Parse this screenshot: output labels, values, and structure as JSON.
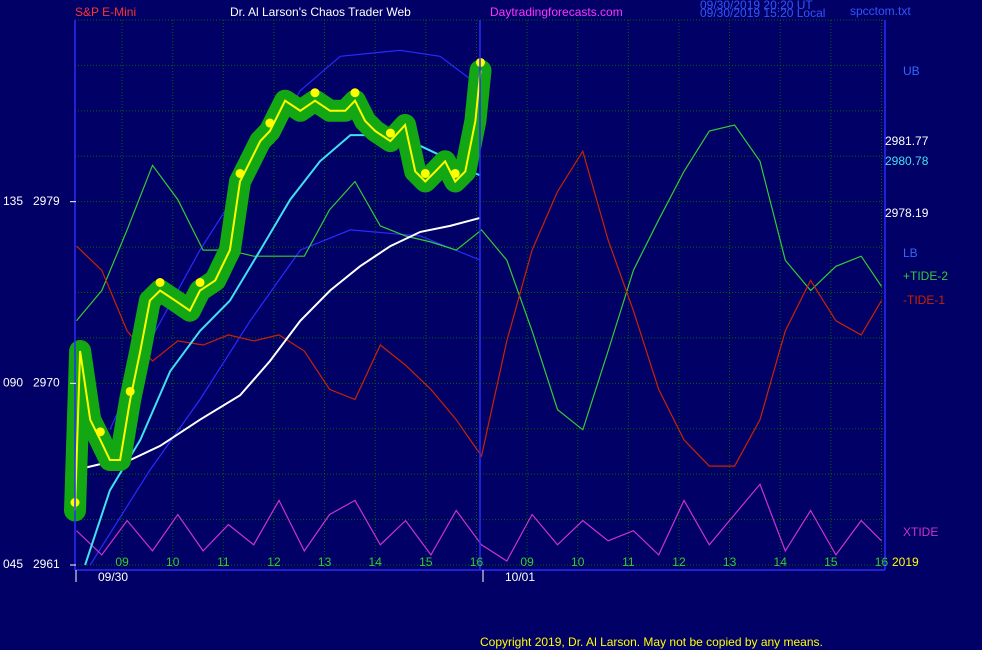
{
  "header": {
    "symbol": "S&P E-Mini",
    "title": "Dr. Al Larson's Chaos Trader Web",
    "site": "Daytradingforecasts.com",
    "time_ut": "09/30/2019 20:20 UT",
    "time_local": "09/30/2019 15:20 Local",
    "file": "spcctom.txt"
  },
  "footer": "Copyright 2019, Dr. Al Larson. May not be copied by any means.",
  "chart_data": {
    "type": "line",
    "xlim": [
      -0.93,
      15.07
    ],
    "ylim": [
      2961,
      2988
    ],
    "categories": [
      "09",
      "10",
      "11",
      "12",
      "13",
      "14",
      "15",
      "16",
      "09",
      "10",
      "11",
      "12",
      "13",
      "14",
      "15",
      "16"
    ],
    "dates": [
      "09/30",
      "10/01"
    ],
    "yticks": [
      2961,
      2970,
      2979
    ],
    "y_left_labels": [
      "045",
      "090",
      "135"
    ],
    "ygrid": [
      2961,
      2963.25,
      2965.5,
      2967.75,
      2970,
      2972.25,
      2974.5,
      2976.75,
      2979,
      2981.25,
      2983.5,
      2985.75,
      2988
    ],
    "grid": true,
    "right_labels": [
      {
        "text": "2981.77",
        "color": "#ffffff"
      },
      {
        "text": "2980.78",
        "color": "#40e0f0"
      },
      {
        "text": "2978.19",
        "color": "#ffffff"
      }
    ],
    "year_label": "2019",
    "x": [
      -0.9,
      -0.4,
      0.1,
      0.6,
      1.1,
      1.6,
      2.1,
      2.6,
      3.1,
      3.6,
      4.1,
      4.6,
      5.1,
      5.6,
      6.1,
      6.6,
      7.1,
      7.6,
      8.1,
      8.6,
      9.1,
      9.6,
      10.1,
      10.6,
      11.1,
      11.6,
      12.1,
      12.6,
      13.1,
      13.6,
      14.1,
      14.6,
      15.0
    ],
    "series": [
      {
        "name": "UB",
        "color": "#2a2aff",
        "x": [
          -0.24,
          0.55,
          1.54,
          2.53,
          3.52,
          4.31,
          5.49,
          6.28,
          7.08
        ],
        "values": [
          2967.7,
          2972.1,
          2976.6,
          2980.5,
          2984.5,
          2986.2,
          2986.5,
          2986.2,
          2984.7
        ]
      },
      {
        "name": "LB",
        "color": "#2a2aff",
        "x": [
          -0.63,
          0.55,
          1.54,
          2.53,
          3.52,
          4.51,
          5.89,
          7.08
        ],
        "values": [
          2961.0,
          2965.7,
          2969.2,
          2973.1,
          2976.6,
          2977.6,
          2977.3,
          2976.1
        ]
      },
      {
        "name": "+TIDE-2",
        "color": "#33cc33",
        "values": [
          2973.1,
          2974.6,
          2977.6,
          2980.8,
          2979.1,
          2976.6,
          2976.6,
          2976.3,
          2976.3,
          2976.3,
          2978.6,
          2980.0,
          2977.8,
          2977.3,
          2977.0,
          2976.6,
          2977.6,
          2976.1,
          2972.6,
          2968.7,
          2967.7,
          2971.6,
          2975.6,
          2978.1,
          2980.5,
          2982.5,
          2982.8,
          2981.0,
          2976.1,
          2974.6,
          2975.8,
          2976.3,
          2974.8
        ]
      },
      {
        "name": "-TIDE-1",
        "color": "#cc2200",
        "values": [
          2976.8,
          2975.6,
          2972.6,
          2971.1,
          2972.1,
          2971.9,
          2972.4,
          2972.1,
          2972.4,
          2971.6,
          2969.7,
          2969.2,
          2971.9,
          2970.9,
          2969.7,
          2968.2,
          2966.4,
          2972.1,
          2976.6,
          2979.5,
          2981.5,
          2977.1,
          2973.6,
          2969.7,
          2967.2,
          2965.9,
          2965.9,
          2968.2,
          2972.6,
          2975.1,
          2973.1,
          2972.4,
          2974.1
        ]
      },
      {
        "name": "XTIDE",
        "color": "#cc33cc",
        "values": [
          2962.7,
          2961.5,
          2963.2,
          2961.7,
          2963.5,
          2961.7,
          2963.0,
          2962.0,
          2964.2,
          2961.7,
          2963.5,
          2964.2,
          2962.0,
          2963.2,
          2961.5,
          2963.7,
          2962.0,
          2961.2,
          2963.5,
          2962.0,
          2963.2,
          2962.2,
          2962.7,
          2961.5,
          2964.2,
          2962.0,
          2963.5,
          2965.0,
          2961.7,
          2963.7,
          2961.5,
          2963.2,
          2962.2
        ]
      },
      {
        "color": "#ffffff",
        "x": [
          -0.93,
          -0.43,
          0.16,
          0.75,
          1.54,
          2.33,
          2.92,
          3.52,
          4.11,
          4.7,
          5.3,
          5.89,
          6.48,
          7.08
        ],
        "values": [
          2965.7,
          2966.0,
          2966.2,
          2966.9,
          2968.2,
          2969.4,
          2971.1,
          2973.1,
          2974.6,
          2975.8,
          2976.8,
          2977.5,
          2977.8,
          2978.2
        ]
      },
      {
        "color": "#40e0f0",
        "x": [
          -0.73,
          -0.24,
          0.36,
          0.95,
          1.54,
          2.13,
          2.73,
          3.32,
          3.91,
          4.51,
          5.1,
          5.69,
          6.28,
          6.88,
          7.08
        ],
        "values": [
          2961.0,
          2964.7,
          2967.2,
          2970.6,
          2972.6,
          2974.1,
          2976.6,
          2979.1,
          2981.0,
          2982.3,
          2982.3,
          2982.0,
          2981.3,
          2980.5,
          2980.3
        ]
      },
      {
        "color": "#ffff00",
        "glow": "#13a813",
        "x": [
          -0.93,
          -0.83,
          -0.63,
          -0.43,
          -0.24,
          -0.04,
          0.16,
          0.36,
          0.55,
          0.75,
          1.05,
          1.34,
          1.54,
          1.84,
          2.13,
          2.33,
          2.53,
          2.73,
          2.92,
          3.22,
          3.52,
          3.81,
          4.11,
          4.41,
          4.6,
          4.8,
          5.0,
          5.3,
          5.59,
          5.79,
          5.99,
          6.19,
          6.38,
          6.58,
          6.78,
          6.98,
          7.08
        ],
        "values": [
          2963.7,
          2971.6,
          2968.2,
          2967.2,
          2966.2,
          2966.2,
          2969.2,
          2971.6,
          2974.1,
          2974.6,
          2974.1,
          2973.6,
          2974.6,
          2975.1,
          2976.6,
          2980.0,
          2981.0,
          2982.0,
          2982.5,
          2984.0,
          2983.5,
          2984.0,
          2983.5,
          2983.5,
          2984.0,
          2983.0,
          2982.5,
          2982.0,
          2982.8,
          2980.5,
          2980.0,
          2980.5,
          2981.0,
          2980.0,
          2980.5,
          2983.0,
          2985.5
        ]
      }
    ]
  }
}
